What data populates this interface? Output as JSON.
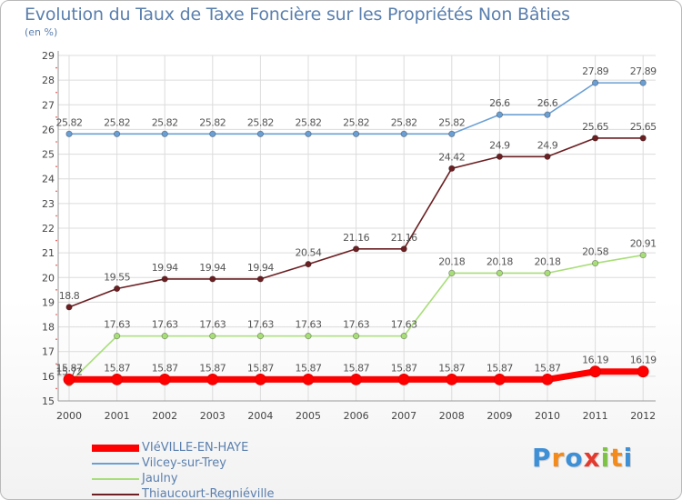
{
  "header": {
    "title": "Evolution du Taux de Taxe Foncière sur les Propriétés Non Bâties",
    "subtitle": "(en %)"
  },
  "brand": {
    "letters": [
      "P",
      "r",
      "o",
      "x",
      "i",
      "t",
      "i"
    ],
    "colors": [
      "#3d8fd6",
      "#f28a1c",
      "#3d8fd6",
      "#e23a2e",
      "#7cc243",
      "#f28a1c",
      "#3d8fd6"
    ]
  },
  "chart_data": {
    "type": "line",
    "x": [
      "2000",
      "2001",
      "2002",
      "2003",
      "2004",
      "2005",
      "2006",
      "2007",
      "2008",
      "2009",
      "2010",
      "2011",
      "2012"
    ],
    "ylim": [
      15,
      29
    ],
    "yticks": [
      "15",
      "16",
      "17",
      "18",
      "19",
      "20",
      "21",
      "22",
      "23",
      "24",
      "25",
      "26",
      "27",
      "28",
      "29"
    ],
    "grid": true,
    "legend_position": "bottom-left",
    "series": [
      {
        "name": "VIéVILLE-EN-HAYE",
        "color": "#ff0000",
        "values": [
          15.87,
          15.87,
          15.87,
          15.87,
          15.87,
          15.87,
          15.87,
          15.87,
          15.87,
          15.87,
          15.87,
          16.19,
          16.19
        ],
        "labels": [
          "15.87",
          "15.87",
          "15.87",
          "15.87",
          "15.87",
          "15.87",
          "15.87",
          "15.87",
          "15.87",
          "15.87",
          "15.87",
          "16.19",
          "16.19"
        ]
      },
      {
        "name": "Vilcey-sur-Trey",
        "color": "#6a9fd4",
        "values": [
          25.82,
          25.82,
          25.82,
          25.82,
          25.82,
          25.82,
          25.82,
          25.82,
          25.82,
          26.6,
          26.6,
          27.89,
          27.89
        ],
        "labels": [
          "25.82",
          "25.82",
          "25.82",
          "25.82",
          "25.82",
          "25.82",
          "25.82",
          "25.82",
          "25.82",
          "26.6",
          "26.6",
          "27.89",
          "27.89"
        ]
      },
      {
        "name": "Jaulny",
        "color": "#a8de78",
        "values": [
          15.72,
          17.63,
          17.63,
          17.63,
          17.63,
          17.63,
          17.63,
          17.63,
          20.18,
          20.18,
          20.18,
          20.58,
          20.91
        ],
        "labels": [
          "15.72",
          "17.63",
          "17.63",
          "17.63",
          "17.63",
          "17.63",
          "17.63",
          "17.63",
          "20.18",
          "20.18",
          "20.18",
          "20.58",
          "20.91"
        ]
      },
      {
        "name": "Thiaucourt-Regniéville",
        "color": "#6b1f22",
        "values": [
          18.8,
          19.55,
          19.94,
          19.94,
          19.94,
          20.54,
          21.16,
          21.16,
          24.42,
          24.9,
          24.9,
          25.65,
          25.65
        ],
        "labels": [
          "18.8",
          "19.55",
          "19.94",
          "19.94",
          "19.94",
          "20.54",
          "21.16",
          "21.16",
          "24.42",
          "24.9",
          "24.9",
          "25.65",
          "25.65"
        ]
      }
    ]
  }
}
